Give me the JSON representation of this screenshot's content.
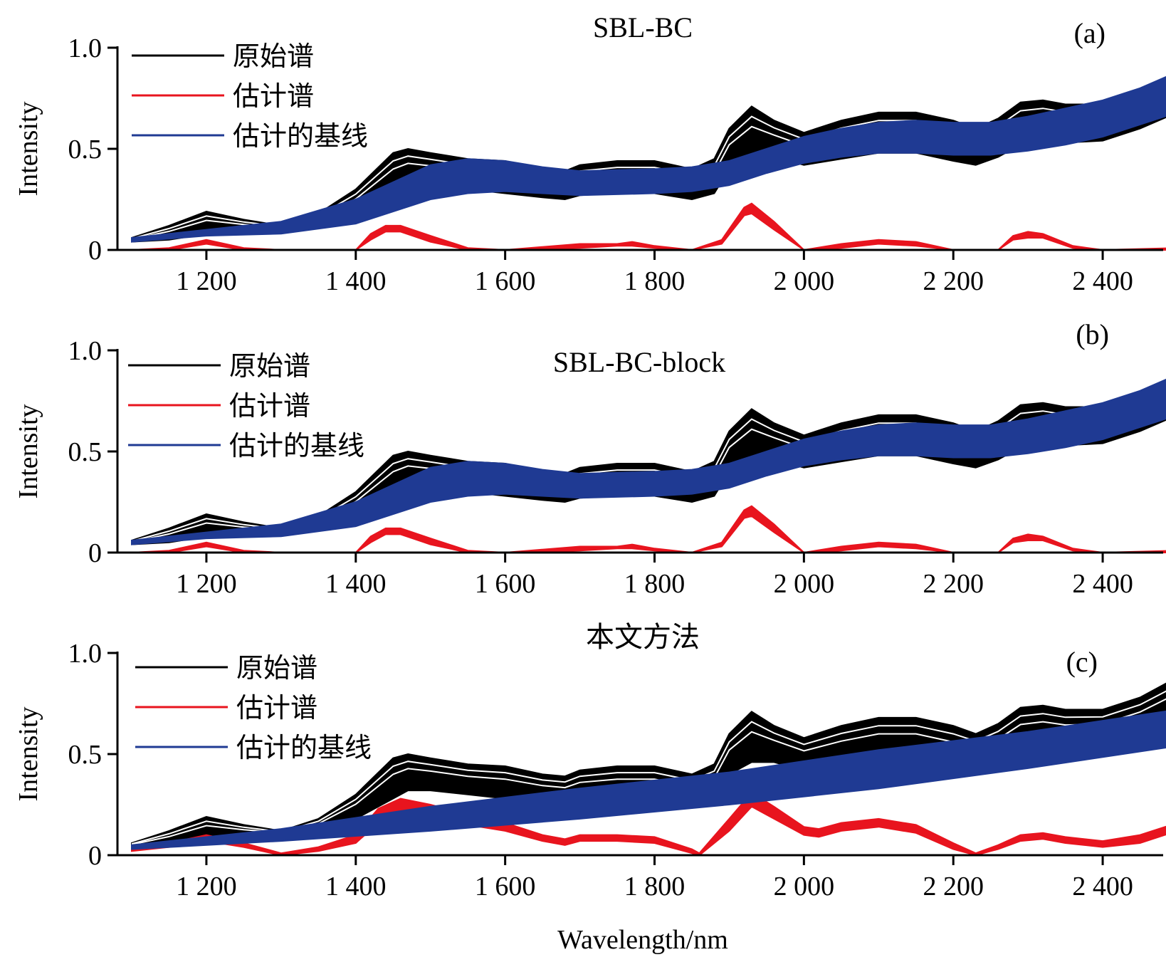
{
  "figure": {
    "x_axis_label": "Wavelength/nm",
    "colors": {
      "original": "#000000",
      "estimated": "#e8141e",
      "baseline": "#1f3a93"
    }
  },
  "chart_data": [
    {
      "type": "line",
      "title": "SBL-BC",
      "tag": "(a)",
      "xlabel": "",
      "ylabel": "Intensity",
      "xlim": [
        1100,
        2500
      ],
      "ylim": [
        0,
        1.0
      ],
      "xticks": [
        1200,
        1400,
        1600,
        1800,
        2000,
        2200,
        2400
      ],
      "xtick_labels": [
        "1 200",
        "1 400",
        "1 600",
        "1 800",
        "2 000",
        "2 200",
        "2 400"
      ],
      "yticks": [
        0,
        0.5,
        1.0
      ],
      "ytick_labels": [
        "0",
        "0.5",
        "1.0"
      ],
      "legend": [
        "原始谱",
        "估计谱",
        "估计的基线"
      ],
      "legend_position": "top-left",
      "series": [
        {
          "name": "原始谱",
          "x": [
            1100,
            1150,
            1200,
            1250,
            1300,
            1350,
            1400,
            1450,
            1470,
            1500,
            1550,
            1600,
            1650,
            1680,
            1700,
            1750,
            1800,
            1850,
            1880,
            1900,
            1930,
            1960,
            2000,
            2050,
            2100,
            2150,
            2200,
            2230,
            2260,
            2290,
            2320,
            2350,
            2400,
            2450,
            2500
          ],
          "upper": [
            0.06,
            0.12,
            0.19,
            0.15,
            0.12,
            0.18,
            0.3,
            0.48,
            0.5,
            0.48,
            0.45,
            0.44,
            0.4,
            0.39,
            0.42,
            0.44,
            0.44,
            0.4,
            0.45,
            0.6,
            0.71,
            0.64,
            0.58,
            0.64,
            0.68,
            0.68,
            0.64,
            0.6,
            0.65,
            0.73,
            0.74,
            0.72,
            0.72,
            0.78,
            0.88
          ],
          "lower": [
            0.04,
            0.05,
            0.08,
            0.09,
            0.1,
            0.12,
            0.18,
            0.28,
            0.32,
            0.32,
            0.3,
            0.28,
            0.26,
            0.25,
            0.27,
            0.28,
            0.28,
            0.25,
            0.28,
            0.4,
            0.46,
            0.46,
            0.42,
            0.45,
            0.48,
            0.48,
            0.44,
            0.42,
            0.46,
            0.52,
            0.54,
            0.53,
            0.54,
            0.6,
            0.68
          ]
        },
        {
          "name": "估计谱",
          "x": [
            1100,
            1150,
            1200,
            1250,
            1300,
            1400,
            1420,
            1440,
            1460,
            1500,
            1550,
            1600,
            1700,
            1750,
            1770,
            1800,
            1850,
            1890,
            1920,
            1930,
            1960,
            2000,
            2050,
            2100,
            2150,
            2200,
            2260,
            2280,
            2300,
            2320,
            2360,
            2400,
            2500
          ],
          "upper": [
            0,
            0.01,
            0.05,
            0.01,
            0,
            0,
            0.08,
            0.12,
            0.12,
            0.07,
            0.01,
            0,
            0.03,
            0.03,
            0.04,
            0.02,
            0,
            0.05,
            0.21,
            0.23,
            0.14,
            0,
            0.03,
            0.05,
            0.04,
            0,
            0,
            0.07,
            0.09,
            0.08,
            0.02,
            0,
            0.01
          ],
          "lower": [
            0,
            0,
            0.03,
            0,
            0,
            0,
            0.05,
            0.09,
            0.09,
            0.04,
            0,
            0,
            0.01,
            0.02,
            0.02,
            0.01,
            0,
            0.03,
            0.17,
            0.18,
            0.1,
            0,
            0.01,
            0.03,
            0.02,
            0,
            0,
            0.05,
            0.06,
            0.06,
            0.01,
            0,
            0
          ]
        },
        {
          "name": "估计的基线",
          "x": [
            1100,
            1200,
            1300,
            1400,
            1500,
            1550,
            1600,
            1650,
            1700,
            1800,
            1850,
            1900,
            1950,
            2000,
            2050,
            2100,
            2150,
            2200,
            2250,
            2300,
            2350,
            2400,
            2450,
            2500
          ],
          "upper": [
            0.06,
            0.1,
            0.14,
            0.25,
            0.42,
            0.45,
            0.44,
            0.41,
            0.39,
            0.4,
            0.41,
            0.44,
            0.5,
            0.56,
            0.6,
            0.63,
            0.64,
            0.63,
            0.63,
            0.66,
            0.7,
            0.74,
            0.8,
            0.88
          ],
          "lower": [
            0.04,
            0.07,
            0.08,
            0.13,
            0.25,
            0.28,
            0.29,
            0.28,
            0.27,
            0.28,
            0.29,
            0.32,
            0.38,
            0.43,
            0.46,
            0.48,
            0.48,
            0.47,
            0.47,
            0.49,
            0.52,
            0.56,
            0.62,
            0.68
          ]
        }
      ]
    },
    {
      "type": "line",
      "title": "SBL-BC-block",
      "tag": "(b)",
      "xlabel": "",
      "ylabel": "Intensity",
      "xlim": [
        1100,
        2500
      ],
      "ylim": [
        0,
        1.0
      ],
      "xticks": [
        1200,
        1400,
        1600,
        1800,
        2000,
        2200,
        2400
      ],
      "xtick_labels": [
        "1 200",
        "1 400",
        "1 600",
        "1 800",
        "2 000",
        "2 200",
        "2 400"
      ],
      "yticks": [
        0,
        0.5,
        1.0
      ],
      "ytick_labels": [
        "0",
        "0.5",
        "1.0"
      ],
      "legend": [
        "原始谱",
        "估计谱",
        "估计的基线"
      ],
      "legend_position": "top-left",
      "series": [
        {
          "name": "原始谱",
          "x": [
            1100,
            1150,
            1200,
            1250,
            1300,
            1350,
            1400,
            1450,
            1470,
            1500,
            1550,
            1600,
            1650,
            1680,
            1700,
            1750,
            1800,
            1850,
            1880,
            1900,
            1930,
            1960,
            2000,
            2050,
            2100,
            2150,
            2200,
            2230,
            2260,
            2290,
            2320,
            2350,
            2400,
            2450,
            2500
          ],
          "upper": [
            0.06,
            0.12,
            0.19,
            0.15,
            0.12,
            0.18,
            0.3,
            0.48,
            0.5,
            0.48,
            0.45,
            0.44,
            0.4,
            0.39,
            0.42,
            0.44,
            0.44,
            0.4,
            0.45,
            0.6,
            0.71,
            0.64,
            0.58,
            0.64,
            0.68,
            0.68,
            0.64,
            0.6,
            0.65,
            0.73,
            0.74,
            0.72,
            0.72,
            0.78,
            0.88
          ],
          "lower": [
            0.04,
            0.05,
            0.08,
            0.09,
            0.1,
            0.12,
            0.18,
            0.28,
            0.32,
            0.32,
            0.3,
            0.28,
            0.26,
            0.25,
            0.27,
            0.28,
            0.28,
            0.25,
            0.28,
            0.4,
            0.46,
            0.46,
            0.42,
            0.45,
            0.48,
            0.48,
            0.44,
            0.42,
            0.46,
            0.52,
            0.54,
            0.53,
            0.54,
            0.6,
            0.68
          ]
        },
        {
          "name": "估计谱",
          "x": [
            1100,
            1150,
            1200,
            1250,
            1300,
            1400,
            1420,
            1440,
            1460,
            1500,
            1550,
            1600,
            1700,
            1750,
            1770,
            1800,
            1850,
            1890,
            1920,
            1930,
            1960,
            2000,
            2050,
            2100,
            2150,
            2200,
            2260,
            2280,
            2300,
            2320,
            2360,
            2400,
            2500
          ],
          "upper": [
            0,
            0.01,
            0.05,
            0.01,
            0,
            0,
            0.08,
            0.12,
            0.12,
            0.07,
            0.01,
            0,
            0.03,
            0.03,
            0.04,
            0.02,
            0,
            0.05,
            0.21,
            0.23,
            0.14,
            0,
            0.03,
            0.05,
            0.04,
            0,
            0,
            0.07,
            0.09,
            0.08,
            0.02,
            0,
            0.01
          ],
          "lower": [
            0,
            0,
            0.03,
            0,
            0,
            0,
            0.05,
            0.09,
            0.09,
            0.04,
            0,
            0,
            0.01,
            0.02,
            0.02,
            0.01,
            0,
            0.03,
            0.17,
            0.18,
            0.1,
            0,
            0.01,
            0.03,
            0.02,
            0,
            0,
            0.05,
            0.06,
            0.06,
            0.01,
            0,
            0
          ]
        },
        {
          "name": "估计的基线",
          "x": [
            1100,
            1200,
            1300,
            1400,
            1500,
            1550,
            1600,
            1650,
            1700,
            1800,
            1850,
            1900,
            1950,
            2000,
            2050,
            2100,
            2150,
            2200,
            2250,
            2300,
            2350,
            2400,
            2450,
            2500
          ],
          "upper": [
            0.06,
            0.1,
            0.14,
            0.25,
            0.42,
            0.45,
            0.44,
            0.41,
            0.39,
            0.4,
            0.41,
            0.44,
            0.5,
            0.56,
            0.6,
            0.63,
            0.64,
            0.63,
            0.63,
            0.66,
            0.7,
            0.74,
            0.8,
            0.88
          ],
          "lower": [
            0.04,
            0.07,
            0.08,
            0.13,
            0.25,
            0.28,
            0.29,
            0.28,
            0.27,
            0.28,
            0.29,
            0.32,
            0.38,
            0.43,
            0.46,
            0.48,
            0.48,
            0.47,
            0.47,
            0.49,
            0.52,
            0.56,
            0.62,
            0.68
          ]
        }
      ]
    },
    {
      "type": "line",
      "title": "本文方法",
      "tag": "(c)",
      "xlabel": "Wavelength/nm",
      "ylabel": "Intensity",
      "xlim": [
        1100,
        2500
      ],
      "ylim": [
        0,
        1.0
      ],
      "xticks": [
        1200,
        1400,
        1600,
        1800,
        2000,
        2200,
        2400
      ],
      "xtick_labels": [
        "1 200",
        "1 400",
        "1 600",
        "1 800",
        "2 000",
        "2 200",
        "2 400"
      ],
      "yticks": [
        0,
        0.5,
        1.0
      ],
      "ytick_labels": [
        "0",
        "0.5",
        "1.0"
      ],
      "legend": [
        "原始谱",
        "估计谱",
        "估计的基线"
      ],
      "legend_position": "top-left",
      "series": [
        {
          "name": "原始谱",
          "x": [
            1100,
            1150,
            1200,
            1250,
            1300,
            1350,
            1400,
            1450,
            1470,
            1500,
            1550,
            1600,
            1650,
            1680,
            1700,
            1750,
            1800,
            1850,
            1880,
            1900,
            1930,
            1960,
            2000,
            2050,
            2100,
            2150,
            2200,
            2230,
            2260,
            2290,
            2320,
            2350,
            2400,
            2450,
            2500
          ],
          "upper": [
            0.06,
            0.12,
            0.19,
            0.15,
            0.12,
            0.18,
            0.3,
            0.48,
            0.5,
            0.48,
            0.45,
            0.44,
            0.4,
            0.39,
            0.42,
            0.44,
            0.44,
            0.4,
            0.45,
            0.6,
            0.71,
            0.64,
            0.58,
            0.64,
            0.68,
            0.68,
            0.64,
            0.6,
            0.65,
            0.73,
            0.74,
            0.72,
            0.72,
            0.78,
            0.88
          ],
          "lower": [
            0.04,
            0.05,
            0.08,
            0.09,
            0.1,
            0.12,
            0.18,
            0.28,
            0.32,
            0.32,
            0.3,
            0.28,
            0.26,
            0.25,
            0.27,
            0.28,
            0.28,
            0.25,
            0.28,
            0.4,
            0.46,
            0.46,
            0.42,
            0.45,
            0.48,
            0.48,
            0.44,
            0.42,
            0.46,
            0.52,
            0.54,
            0.53,
            0.54,
            0.6,
            0.68
          ]
        },
        {
          "name": "估计谱",
          "x": [
            1100,
            1150,
            1200,
            1250,
            1300,
            1350,
            1400,
            1430,
            1460,
            1500,
            1550,
            1600,
            1650,
            1680,
            1700,
            1750,
            1800,
            1850,
            1860,
            1900,
            1930,
            1960,
            2000,
            2020,
            2050,
            2100,
            2150,
            2200,
            2230,
            2260,
            2290,
            2320,
            2350,
            2400,
            2450,
            2500
          ],
          "upper": [
            0.03,
            0.06,
            0.1,
            0.06,
            0.01,
            0.04,
            0.1,
            0.23,
            0.28,
            0.25,
            0.2,
            0.16,
            0.1,
            0.08,
            0.1,
            0.1,
            0.09,
            0.03,
            0.01,
            0.18,
            0.31,
            0.24,
            0.14,
            0.13,
            0.16,
            0.18,
            0.15,
            0.06,
            0.01,
            0.05,
            0.1,
            0.11,
            0.09,
            0.07,
            0.1,
            0.16
          ],
          "lower": [
            0.02,
            0.04,
            0.07,
            0.04,
            0.0,
            0.02,
            0.06,
            0.16,
            0.2,
            0.19,
            0.15,
            0.12,
            0.07,
            0.05,
            0.07,
            0.07,
            0.06,
            0.01,
            0.0,
            0.12,
            0.24,
            0.18,
            0.1,
            0.09,
            0.12,
            0.14,
            0.11,
            0.03,
            0.0,
            0.03,
            0.07,
            0.08,
            0.06,
            0.04,
            0.06,
            0.12
          ]
        },
        {
          "name": "估计的基线",
          "x": [
            1100,
            1300,
            1500,
            1700,
            1900,
            2100,
            2300,
            2500
          ],
          "upper": [
            0.05,
            0.13,
            0.24,
            0.33,
            0.41,
            0.52,
            0.61,
            0.72
          ],
          "lower": [
            0.03,
            0.07,
            0.12,
            0.18,
            0.25,
            0.33,
            0.43,
            0.54
          ]
        }
      ]
    }
  ]
}
